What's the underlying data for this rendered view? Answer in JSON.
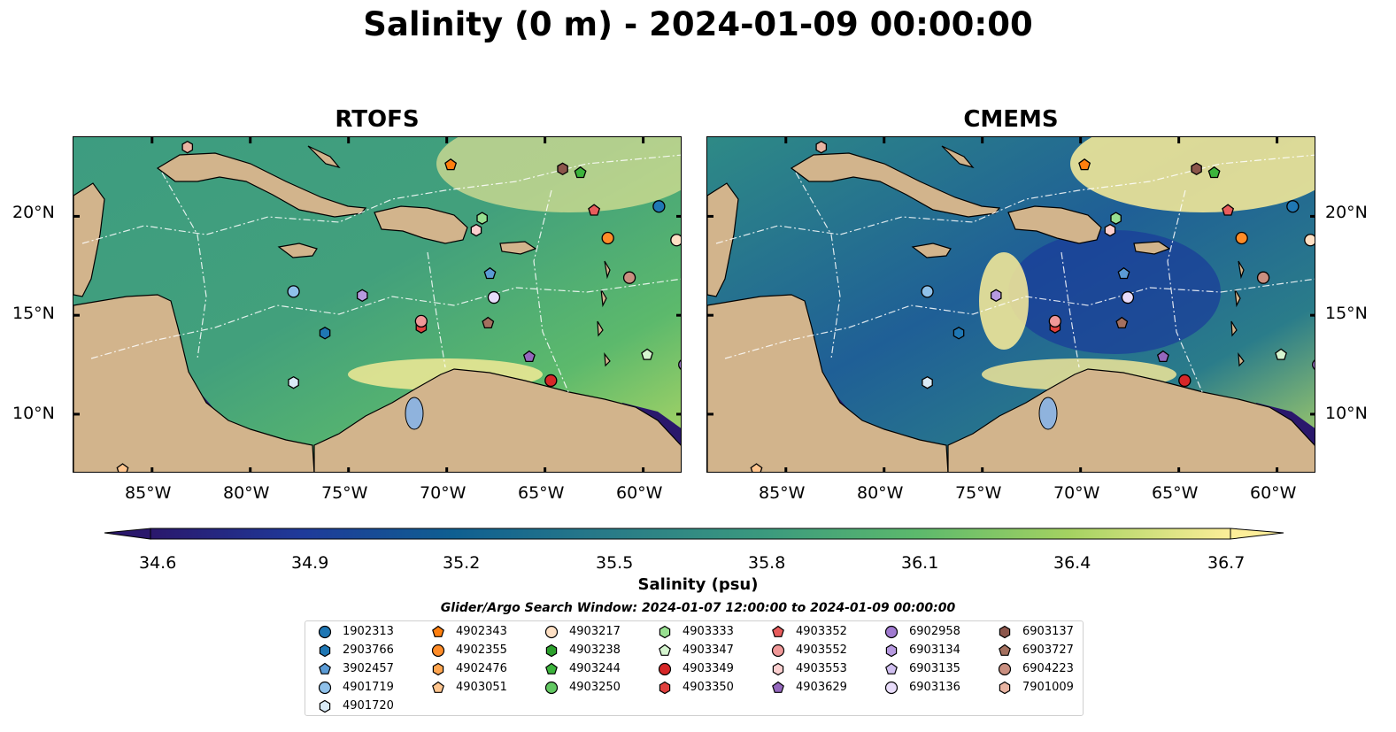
{
  "title": "Salinity (0 m) - 2024-01-09 00:00:00",
  "panels": [
    {
      "title": "RTOFS"
    },
    {
      "title": "CMEMS"
    }
  ],
  "axes": {
    "lat_labels": [
      "20°N",
      "15°N",
      "10°N"
    ],
    "lon_labels": [
      "85°W",
      "80°W",
      "75°W",
      "70°W",
      "65°W",
      "60°W"
    ],
    "lon_range": [
      -89,
      -58
    ],
    "lat_range": [
      7,
      24
    ]
  },
  "colorbar": {
    "label": "Salinity (psu)",
    "ticks": [
      "34.6",
      "34.9",
      "35.2",
      "35.5",
      "35.8",
      "36.1",
      "36.4",
      "36.7"
    ],
    "min": 34.6,
    "max": 36.7,
    "colormap": "haline",
    "extend": "both"
  },
  "search_window": "Glider/Argo Search Window: 2024-01-07 12:00:00 to 2024-01-09 00:00:00",
  "colors": {
    "land": "#d2b48c",
    "low_salinity": "#2a186c",
    "mid_salinity": "#2f8f87",
    "high_salinity": "#fdee99",
    "contour": "#ffffff"
  },
  "legend": [
    {
      "id": "1902313",
      "marker": "circle",
      "color": "#1f77b4"
    },
    {
      "id": "2903766",
      "marker": "hexagon",
      "color": "#1f77b4"
    },
    {
      "id": "3902457",
      "marker": "pentagon",
      "color": "#5b9bd5"
    },
    {
      "id": "4901719",
      "marker": "circle",
      "color": "#8fc1ea"
    },
    {
      "id": "4901720",
      "marker": "hexagon",
      "color": "#d9ebf7"
    },
    {
      "id": "4902343",
      "marker": "pentagon",
      "color": "#ff7f0e"
    },
    {
      "id": "4902355",
      "marker": "circle",
      "color": "#ff8c28"
    },
    {
      "id": "4902476",
      "marker": "hexagon",
      "color": "#ffa54f"
    },
    {
      "id": "4903051",
      "marker": "pentagon",
      "color": "#ffc58e"
    },
    {
      "id": "4903217",
      "marker": "circle",
      "color": "#ffe0c4"
    },
    {
      "id": "4903238",
      "marker": "hexagon",
      "color": "#2ca02c"
    },
    {
      "id": "4903244",
      "marker": "pentagon",
      "color": "#3cb43c"
    },
    {
      "id": "4903250",
      "marker": "circle",
      "color": "#62c862"
    },
    {
      "id": "4903333",
      "marker": "hexagon",
      "color": "#98e090"
    },
    {
      "id": "4903347",
      "marker": "pentagon",
      "color": "#d5f5cf"
    },
    {
      "id": "4903349",
      "marker": "circle",
      "color": "#d62728"
    },
    {
      "id": "4903350",
      "marker": "hexagon",
      "color": "#e0403e"
    },
    {
      "id": "4903352",
      "marker": "pentagon",
      "color": "#e85c5c"
    },
    {
      "id": "4903552",
      "marker": "circle",
      "color": "#f09898"
    },
    {
      "id": "4903553",
      "marker": "hexagon",
      "color": "#fbcfcf"
    },
    {
      "id": "4903629",
      "marker": "pentagon",
      "color": "#9467bd"
    },
    {
      "id": "6902958",
      "marker": "circle",
      "color": "#a07ad0"
    },
    {
      "id": "6903134",
      "marker": "hexagon",
      "color": "#b79ae0"
    },
    {
      "id": "6903135",
      "marker": "pentagon",
      "color": "#d0bff0"
    },
    {
      "id": "6903136",
      "marker": "circle",
      "color": "#e8dcfa"
    },
    {
      "id": "6903137",
      "marker": "hexagon",
      "color": "#8c564b"
    },
    {
      "id": "6903727",
      "marker": "pentagon",
      "color": "#a4705f"
    },
    {
      "id": "6904223",
      "marker": "circle",
      "color": "#c98f80"
    },
    {
      "id": "7901009",
      "marker": "hexagon",
      "color": "#e8b4a2"
    }
  ],
  "floats": [
    {
      "id": "1902313",
      "lon": -59.2,
      "lat": 20.5
    },
    {
      "id": "2903766",
      "lon": -76.2,
      "lat": 14.1
    },
    {
      "id": "3902457",
      "lon": -67.8,
      "lat": 17.1
    },
    {
      "id": "4901719",
      "lon": -77.8,
      "lat": 16.2
    },
    {
      "id": "4901720",
      "lon": -77.8,
      "lat": 11.6
    },
    {
      "id": "4902343",
      "lon": -69.8,
      "lat": 22.6
    },
    {
      "id": "4902355",
      "lon": -61.8,
      "lat": 18.9
    },
    {
      "id": "4903051",
      "lon": -86.5,
      "lat": 7.2
    },
    {
      "id": "4903217",
      "lon": -58.3,
      "lat": 18.8
    },
    {
      "id": "4903244",
      "lon": -63.2,
      "lat": 22.2
    },
    {
      "id": "4903333",
      "lon": -68.2,
      "lat": 19.9
    },
    {
      "id": "4903347",
      "lon": -59.8,
      "lat": 13.0
    },
    {
      "id": "4903349",
      "lon": -64.7,
      "lat": 11.7
    },
    {
      "id": "4903350",
      "lon": -71.3,
      "lat": 14.4
    },
    {
      "id": "4903352",
      "lon": -62.5,
      "lat": 20.3
    },
    {
      "id": "4903552",
      "lon": -71.3,
      "lat": 14.7
    },
    {
      "id": "4903553",
      "lon": -68.5,
      "lat": 19.3
    },
    {
      "id": "4903629",
      "lon": -65.8,
      "lat": 12.9
    },
    {
      "id": "6902958",
      "lon": -57.9,
      "lat": 12.5
    },
    {
      "id": "6903134",
      "lon": -74.3,
      "lat": 16.0
    },
    {
      "id": "6903136",
      "lon": -67.6,
      "lat": 15.9
    },
    {
      "id": "6903137",
      "lon": -64.1,
      "lat": 22.4
    },
    {
      "id": "6903727",
      "lon": -67.9,
      "lat": 14.6
    },
    {
      "id": "6904223",
      "lon": -60.7,
      "lat": 16.9
    },
    {
      "id": "7901009",
      "lon": -83.2,
      "lat": 23.5
    }
  ]
}
